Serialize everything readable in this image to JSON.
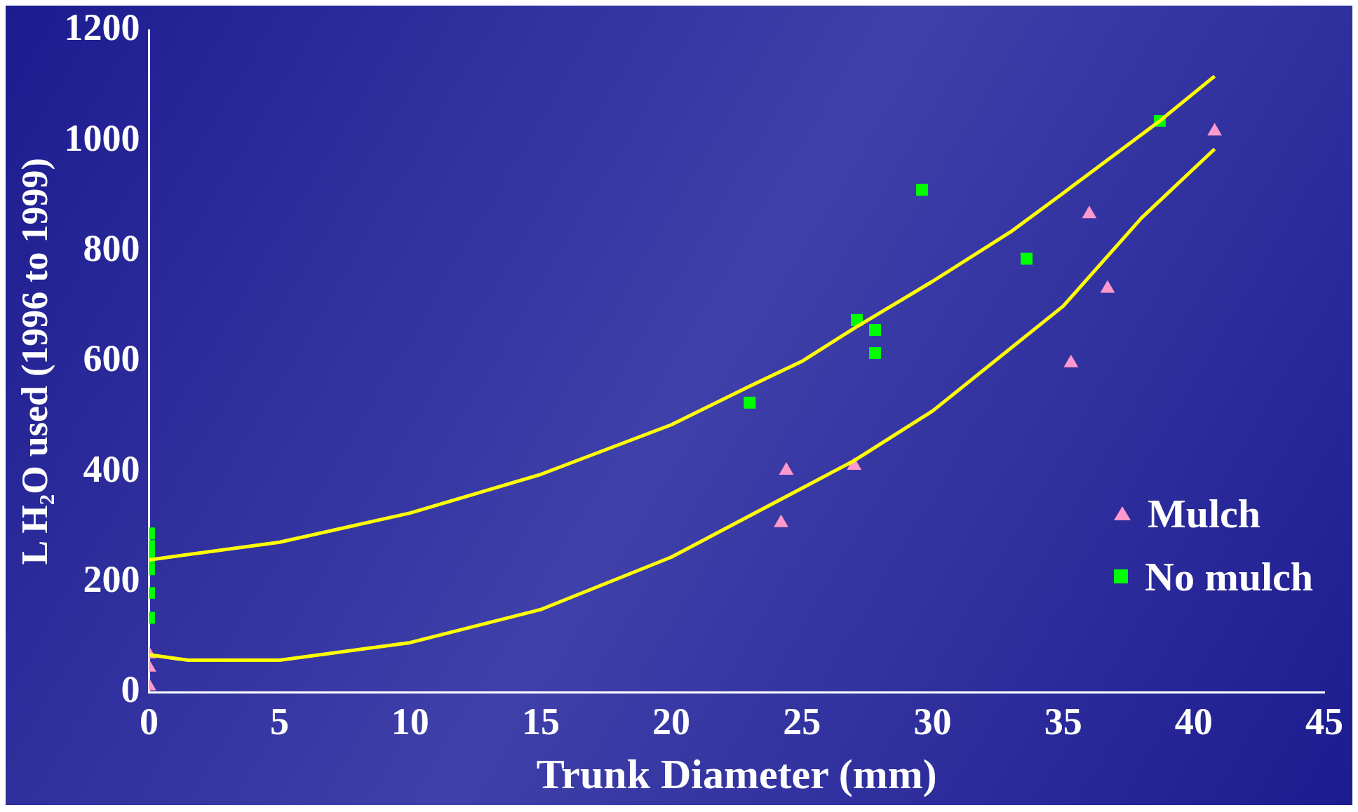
{
  "chart_data": {
    "type": "scatter",
    "xlabel": "Trunk Diameter (mm)",
    "ylabel": "L H₂O used (1996 to 1999)",
    "xlim": [
      0,
      45
    ],
    "xticks": [
      0,
      5,
      10,
      15,
      20,
      25,
      30,
      35,
      40,
      45
    ],
    "ylim": [
      0,
      1200
    ],
    "yticks": [
      0,
      200,
      400,
      600,
      800,
      1000,
      1200
    ],
    "grid": false,
    "legend": "bottom right",
    "series": [
      {
        "name": "Mulch",
        "type": "scatter",
        "marker": "triangle",
        "color": "#ff99cc",
        "x": [
          0,
          0,
          0,
          24.2,
          24.4,
          27.0,
          35.3,
          36.0,
          36.7,
          40.8
        ],
        "values": [
          69,
          45,
          11,
          307,
          402,
          411,
          597,
          867,
          732,
          1017
        ]
      },
      {
        "name": "No mulch",
        "type": "scatter",
        "marker": "square",
        "color": "#00ff00",
        "x": [
          0,
          0,
          0,
          0,
          0,
          0,
          23.0,
          27.1,
          27.8,
          27.8,
          29.6,
          33.6,
          38.7
        ],
        "values": [
          288,
          265,
          245,
          223,
          180,
          135,
          525,
          675,
          657,
          615,
          911,
          786,
          1036
        ]
      },
      {
        "type": "line",
        "marker": "none",
        "color": "#ffff00",
        "x": [
          0,
          5,
          10,
          15,
          20,
          23,
          25,
          27,
          30,
          33,
          35,
          38.7,
          40.8
        ],
        "values": [
          240,
          272,
          325,
          395,
          485,
          555,
          600,
          660,
          745,
          835,
          905,
          1036,
          1117
        ]
      },
      {
        "type": "line",
        "marker": "none",
        "color": "#ffff00",
        "x": [
          0,
          1.5,
          5,
          10,
          15,
          20,
          25,
          27,
          30,
          35,
          38,
          40.8
        ],
        "values": [
          68,
          58,
          58,
          90,
          150,
          245,
          370,
          420,
          510,
          700,
          860,
          985
        ]
      }
    ]
  }
}
